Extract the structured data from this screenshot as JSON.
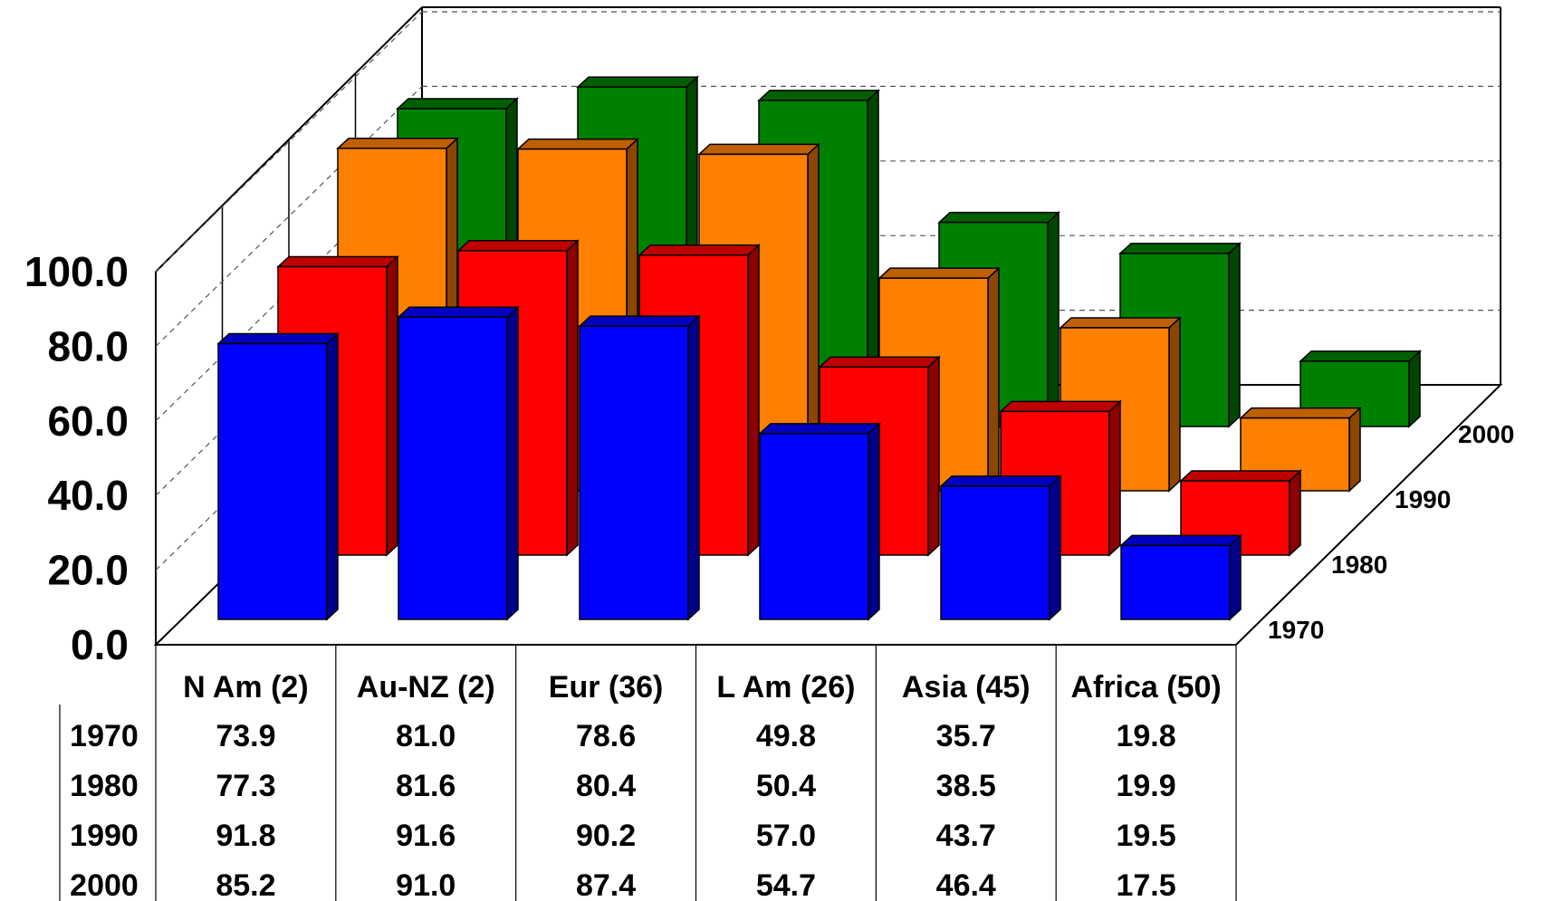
{
  "chart_data": {
    "type": "bar",
    "subtype": "3d-bar-with-data-table",
    "categories": [
      "N Am (2)",
      "Au-NZ (2)",
      "Eur (36)",
      "L Am (26)",
      "Asia (45)",
      "Africa (50)"
    ],
    "series": [
      {
        "name": "1970",
        "color": "#0000ff",
        "values": [
          73.9,
          81.0,
          78.6,
          49.8,
          35.7,
          19.8
        ]
      },
      {
        "name": "1980",
        "color": "#ff0000",
        "values": [
          77.3,
          81.6,
          80.4,
          50.4,
          38.5,
          19.9
        ]
      },
      {
        "name": "1990",
        "color": "#ff8000",
        "values": [
          91.8,
          91.6,
          90.2,
          57.0,
          43.7,
          19.5
        ]
      },
      {
        "name": "2000",
        "color": "#008000",
        "values": [
          85.2,
          91.0,
          87.4,
          54.7,
          46.4,
          17.5
        ]
      }
    ],
    "yticks": [
      "0.0",
      "20.0",
      "40.0",
      "60.0",
      "80.0",
      "100.0"
    ],
    "ylim": [
      0,
      100
    ],
    "grid": "dashed horizontal on back wall",
    "data_table": {
      "columns": [
        "N Am (2)",
        "Au-NZ (2)",
        "Eur (36)",
        "L Am (26)",
        "Asia (45)",
        "Africa (50)"
      ],
      "rows": [
        {
          "label": "1970",
          "cells": [
            "73.9",
            "81.0",
            "78.6",
            "49.8",
            "35.7",
            "19.8"
          ]
        },
        {
          "label": "1980",
          "cells": [
            "77.3",
            "81.6",
            "80.4",
            "50.4",
            "38.5",
            "19.9"
          ]
        },
        {
          "label": "1990",
          "cells": [
            "91.8",
            "91.6",
            "90.2",
            "57.0",
            "43.7",
            "19.5"
          ]
        },
        {
          "label": "2000",
          "cells": [
            "85.2",
            "91.0",
            "87.4",
            "54.7",
            "46.4",
            "17.5"
          ]
        }
      ]
    }
  }
}
